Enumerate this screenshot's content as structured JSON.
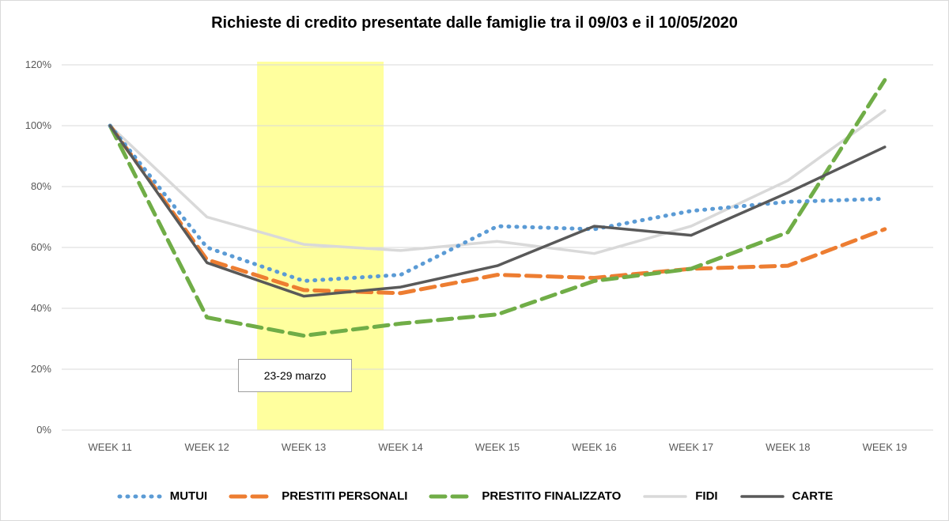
{
  "chart_data": {
    "type": "line",
    "title": "Richieste di credito presentate dalle famiglie tra il 09/03 e il 10/05/2020",
    "categories": [
      "WEEK 11",
      "WEEK 12",
      "WEEK 13",
      "WEEK 14",
      "WEEK 15",
      "WEEK 16",
      "WEEK 17",
      "WEEK 18",
      "WEEK 19"
    ],
    "y_ticks": [
      "0%",
      "20%",
      "40%",
      "60%",
      "80%",
      "100%",
      "120%"
    ],
    "ylim": [
      0,
      120
    ],
    "grid": true,
    "legend_position": "bottom",
    "highlight": {
      "category_index": 2,
      "label": "23-29 marzo",
      "color": "#ffff9e"
    },
    "series": [
      {
        "name": "MUTUI",
        "style": "dotted",
        "color": "#5b9bd5",
        "values": [
          100,
          60,
          49,
          51,
          67,
          66,
          72,
          75,
          76
        ]
      },
      {
        "name": "PRESTITI PERSONALI",
        "style": "dashed",
        "color": "#ed7d31",
        "values": [
          100,
          56,
          46,
          45,
          51,
          50,
          53,
          54,
          66
        ]
      },
      {
        "name": "PRESTITO FINALIZZATO",
        "style": "dashed",
        "color": "#70ad47",
        "values": [
          100,
          37,
          31,
          35,
          38,
          49,
          53,
          65,
          115
        ]
      },
      {
        "name": "FIDI",
        "style": "solid",
        "color": "#d9d9d9",
        "values": [
          100,
          70,
          61,
          59,
          62,
          58,
          67,
          82,
          105
        ]
      },
      {
        "name": "CARTE",
        "style": "solid",
        "color": "#595959",
        "values": [
          100,
          55,
          44,
          47,
          54,
          67,
          64,
          78,
          93
        ]
      }
    ]
  }
}
